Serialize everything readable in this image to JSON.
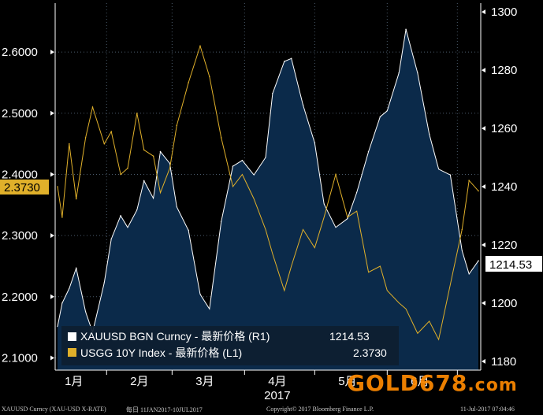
{
  "chart_data": {
    "type": "area",
    "title": "",
    "x_axis": {
      "year_label": "2017",
      "month_labels": [
        "1月",
        "2月",
        "3月",
        "4月",
        "5月",
        "6月"
      ]
    },
    "left_axis": {
      "ylim": [
        2.08,
        2.68
      ],
      "ticks": [
        "2.1000",
        "2.2000",
        "2.3000",
        "2.4000",
        "2.5000",
        "2.6000"
      ]
    },
    "right_axis": {
      "ylim": [
        1177,
        1303
      ],
      "ticks": [
        "1180",
        "1200",
        "1220",
        "1240",
        "1260",
        "1280",
        "1300"
      ]
    },
    "legend": {
      "position": "bottom-left",
      "entries": [
        {
          "label": "XAUUSD BGN Curncy - 最新价格 (R1)",
          "value": "1214.53",
          "color": "#ffffff"
        },
        {
          "label": "USGG 10Y Index - 最新价格 (L1)",
          "value": "2.3730",
          "color": "#e0b02a"
        }
      ]
    },
    "last_value_tags": {
      "left": "2.3730",
      "right": "1214.53"
    },
    "series": [
      {
        "name": "XAUUSD BGN Curncy",
        "axis": "right",
        "style": "area",
        "color": "#ffffff",
        "fill": "#0b2a4a",
        "x": [
          "2017-01-11",
          "2017-01-13",
          "2017-01-16",
          "2017-01-19",
          "2017-01-23",
          "2017-01-26",
          "2017-01-31",
          "2017-02-03",
          "2017-02-07",
          "2017-02-10",
          "2017-02-14",
          "2017-02-17",
          "2017-02-21",
          "2017-02-24",
          "2017-02-28",
          "2017-03-03",
          "2017-03-08",
          "2017-03-13",
          "2017-03-17",
          "2017-03-22",
          "2017-03-27",
          "2017-03-31",
          "2017-04-05",
          "2017-04-10",
          "2017-04-13",
          "2017-04-18",
          "2017-04-21",
          "2017-04-26",
          "2017-05-01",
          "2017-05-05",
          "2017-05-10",
          "2017-05-15",
          "2017-05-19",
          "2017-05-24",
          "2017-05-29",
          "2017-06-01",
          "2017-06-06",
          "2017-06-09",
          "2017-06-14",
          "2017-06-19",
          "2017-06-23",
          "2017-06-28",
          "2017-07-03",
          "2017-07-06",
          "2017-07-10"
        ],
        "y": [
          1192,
          1200,
          1205,
          1212,
          1197,
          1190,
          1207,
          1222,
          1230,
          1226,
          1232,
          1242,
          1236,
          1252,
          1248,
          1233,
          1225,
          1203,
          1198,
          1228,
          1247,
          1249,
          1244,
          1250,
          1272,
          1283,
          1284,
          1268,
          1255,
          1234,
          1226,
          1229,
          1238,
          1252,
          1264,
          1266,
          1279,
          1294,
          1279,
          1258,
          1246,
          1244,
          1218,
          1210,
          1214.53
        ]
      },
      {
        "name": "USGG 10Y Index",
        "axis": "left",
        "style": "line",
        "color": "#e0b02a",
        "x": [
          "2017-01-11",
          "2017-01-13",
          "2017-01-16",
          "2017-01-19",
          "2017-01-23",
          "2017-01-26",
          "2017-01-31",
          "2017-02-03",
          "2017-02-07",
          "2017-02-10",
          "2017-02-14",
          "2017-02-17",
          "2017-02-21",
          "2017-02-24",
          "2017-02-28",
          "2017-03-03",
          "2017-03-08",
          "2017-03-13",
          "2017-03-17",
          "2017-03-22",
          "2017-03-27",
          "2017-03-31",
          "2017-04-05",
          "2017-04-10",
          "2017-04-13",
          "2017-04-18",
          "2017-04-21",
          "2017-04-26",
          "2017-05-01",
          "2017-05-05",
          "2017-05-10",
          "2017-05-15",
          "2017-05-19",
          "2017-05-24",
          "2017-05-29",
          "2017-06-01",
          "2017-06-06",
          "2017-06-09",
          "2017-06-14",
          "2017-06-19",
          "2017-06-23",
          "2017-06-28",
          "2017-07-03",
          "2017-07-06",
          "2017-07-10"
        ],
        "y": [
          2.38,
          2.33,
          2.45,
          2.36,
          2.46,
          2.51,
          2.45,
          2.47,
          2.4,
          2.41,
          2.5,
          2.44,
          2.43,
          2.37,
          2.41,
          2.48,
          2.55,
          2.61,
          2.56,
          2.46,
          2.38,
          2.4,
          2.36,
          2.31,
          2.27,
          2.21,
          2.25,
          2.31,
          2.28,
          2.33,
          2.4,
          2.33,
          2.34,
          2.24,
          2.25,
          2.21,
          2.19,
          2.18,
          2.14,
          2.16,
          2.13,
          2.22,
          2.31,
          2.39,
          2.373
        ]
      }
    ]
  },
  "footer": {
    "left_code": "XAUUSD Curncy (XAU-USD X-RATE)",
    "range": "每日 11JAN2017-10JUL2017",
    "copyright": "Copyright© 2017 Bloomberg Finance L.P.",
    "timestamp": "11-Jul-2017 07:04:46"
  },
  "watermark": {
    "main": "GOLD678",
    "tld": ".com"
  },
  "colors": {
    "background": "#000000",
    "gold_area_fill": "#0b2a4a",
    "gold_line": "#ffffff",
    "yield_line": "#e0b02a",
    "grid": "#4a5a6a",
    "watermark": "#ff8a00"
  }
}
